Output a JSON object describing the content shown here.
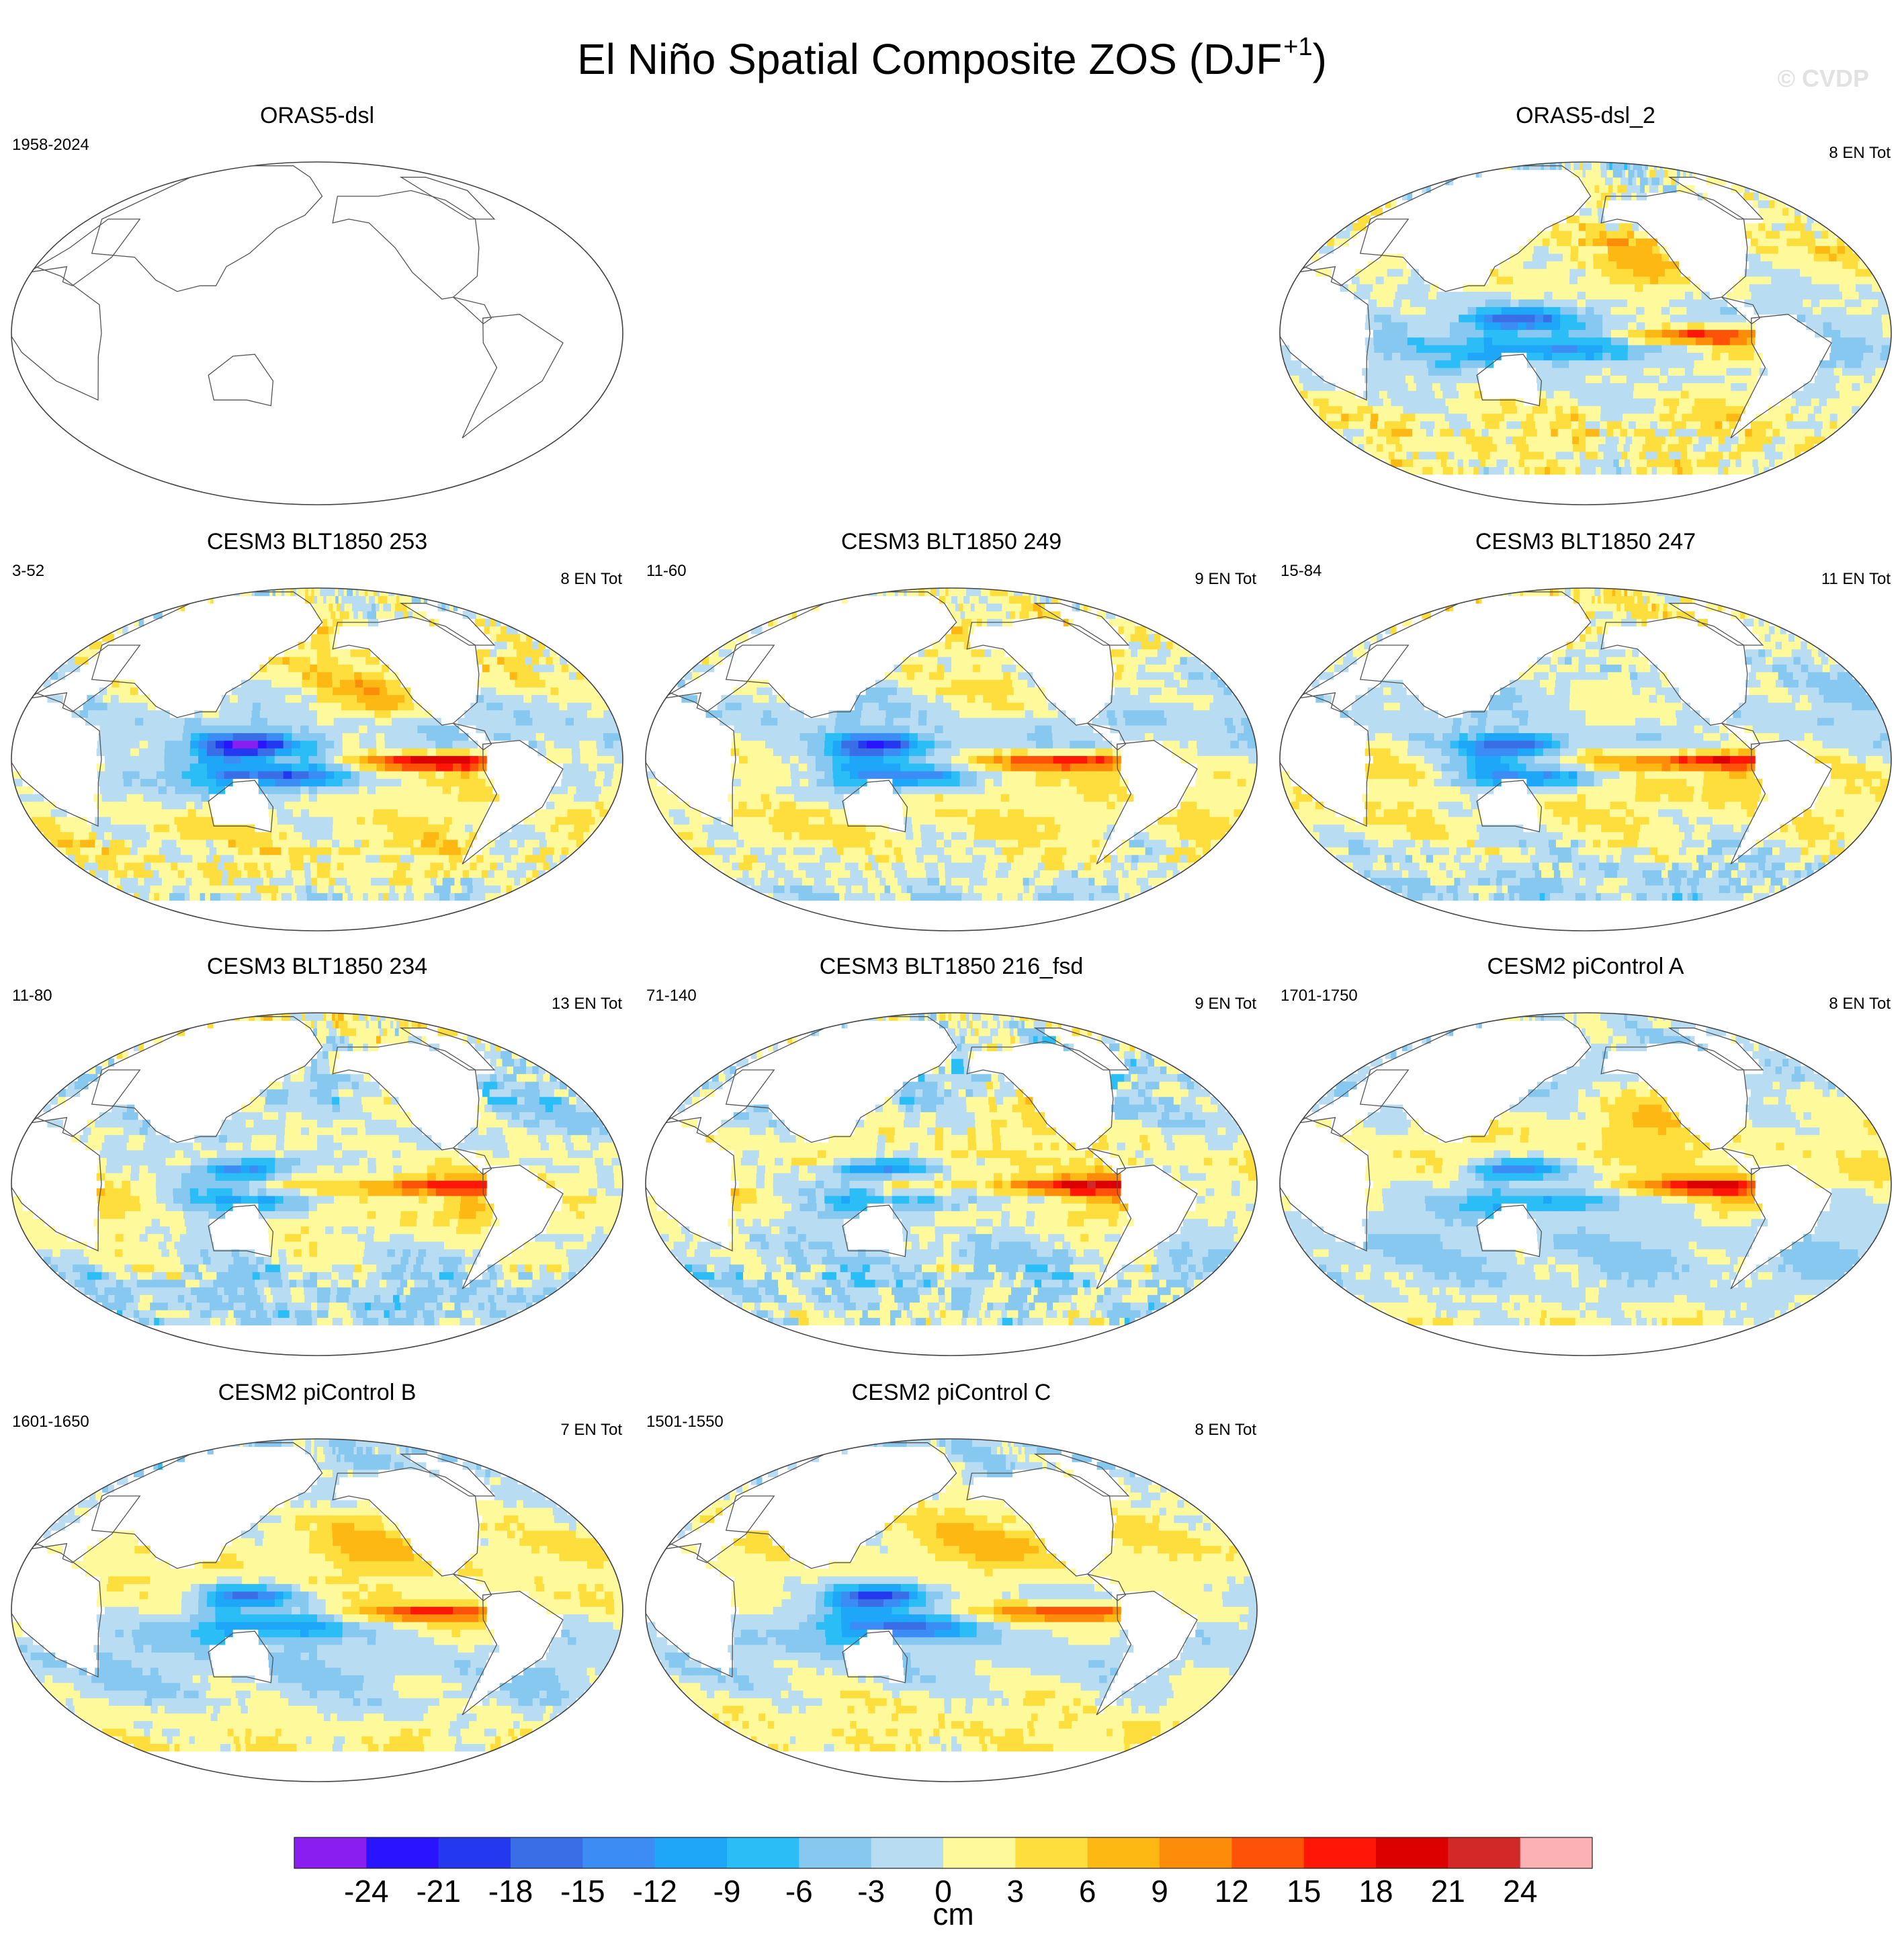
{
  "figure": {
    "title_main": "El Niño Spatial Composite ZOS (DJF",
    "title_sup": "+1",
    "title_close": ")",
    "watermark": "© CVDP"
  },
  "panels": [
    {
      "id": "orasdsl",
      "title": "ORAS5-dsl",
      "period": "1958-2024",
      "count": "",
      "has_data": false,
      "amplitude": 0,
      "noise": 0
    },
    {
      "id": "oras2",
      "title": "ORAS5-dsl_2",
      "period": "",
      "count": "8 EN Tot",
      "has_data": true,
      "amplitude": 0.72,
      "noise": 0.35
    },
    {
      "id": "b253",
      "title": "CESM3 BLT1850 253",
      "period": "3-52",
      "count": "8 EN Tot",
      "has_data": true,
      "amplitude": 1.0,
      "noise": 0.35
    },
    {
      "id": "b249",
      "title": "CESM3 BLT1850 249",
      "period": "11-60",
      "count": "9 EN Tot",
      "has_data": true,
      "amplitude": 0.85,
      "noise": 0.3
    },
    {
      "id": "b247",
      "title": "CESM3 BLT1850 247",
      "period": "15-84",
      "count": "11 EN Tot",
      "has_data": true,
      "amplitude": 0.85,
      "noise": 0.3
    },
    {
      "id": "b234",
      "title": "CESM3 BLT1850 234",
      "period": "11-80",
      "count": "13 EN Tot",
      "has_data": true,
      "amplitude": 0.72,
      "noise": 0.35
    },
    {
      "id": "b216",
      "title": "CESM3 BLT1850 216_fsd",
      "period": "71-140",
      "count": "9 EN Tot",
      "has_data": true,
      "amplitude": 0.72,
      "noise": 0.4
    },
    {
      "id": "pica",
      "title": "CESM2 piControl A",
      "period": "1701-1750",
      "count": "8 EN Tot",
      "has_data": true,
      "amplitude": 0.75,
      "noise": 0.15
    },
    {
      "id": "picb",
      "title": "CESM2 piControl B",
      "period": "1601-1650",
      "count": "7 EN Tot",
      "has_data": true,
      "amplitude": 0.7,
      "noise": 0.15
    },
    {
      "id": "picc",
      "title": "CESM2 piControl C",
      "period": "1501-1550",
      "count": "8 EN Tot",
      "has_data": true,
      "amplitude": 0.8,
      "noise": 0.15
    }
  ],
  "chart_data": {
    "type": "filled-contour map panels",
    "title": "El Niño Spatial Composite ZOS (DJF+1)",
    "projection": "Robinson, centered on the Pacific",
    "variable": "ZOS (sea surface height) composite anomaly",
    "colorbar": {
      "unit": "cm",
      "levels": [
        -24,
        -21,
        -18,
        -15,
        -12,
        -9,
        -6,
        -3,
        0,
        3,
        6,
        9,
        12,
        15,
        18,
        21,
        24
      ],
      "tick_labels": [
        "-24",
        "-21",
        "-18",
        "-15",
        "-12",
        "-9",
        "-6",
        "-3",
        "0",
        "3",
        "6",
        "9",
        "12",
        "15",
        "18",
        "21",
        "24"
      ],
      "colors": [
        "#8a1ef0",
        "#2a14ff",
        "#2438f0",
        "#3a6ee6",
        "#3c8cf5",
        "#1ea6f8",
        "#2bbef6",
        "#86c8ef",
        "#b8ddf2",
        "#fef99a",
        "#fdde3c",
        "#fdb814",
        "#fd8c0a",
        "#fe5208",
        "#ff1606",
        "#dd0000",
        "#d22828",
        "#fcb2b4"
      ]
    },
    "panels": [
      {
        "title": "ORAS5-dsl",
        "period": "1958-2024",
        "el_nino_events": null,
        "data": "none (blank map)"
      },
      {
        "title": "ORAS5-dsl_2",
        "el_nino_events": 8,
        "east_pacific_max_cm": 12,
        "west_pacific_min_cm": -18
      },
      {
        "title": "CESM3 BLT1850 253",
        "period": "3-52",
        "el_nino_events": 8,
        "east_pacific_max_cm": 21,
        "west_pacific_min_cm": -21
      },
      {
        "title": "CESM3 BLT1850 249",
        "period": "11-60",
        "el_nino_events": 9,
        "east_pacific_max_cm": 18,
        "west_pacific_min_cm": -21
      },
      {
        "title": "CESM3 BLT1850 247",
        "period": "15-84",
        "el_nino_events": 11,
        "east_pacific_max_cm": 18,
        "west_pacific_min_cm": -21
      },
      {
        "title": "CESM3 BLT1850 234",
        "period": "11-80",
        "el_nino_events": 13,
        "east_pacific_max_cm": 15,
        "west_pacific_min_cm": -18
      },
      {
        "title": "CESM3 BLT1850 216_fsd",
        "period": "71-140",
        "el_nino_events": 9,
        "east_pacific_max_cm": 15,
        "west_pacific_min_cm": -18
      },
      {
        "title": "CESM2 piControl A",
        "period": "1701-1750",
        "el_nino_events": 8,
        "east_pacific_max_cm": 15,
        "west_pacific_min_cm": -15
      },
      {
        "title": "CESM2 piControl B",
        "period": "1601-1650",
        "el_nino_events": 7,
        "east_pacific_max_cm": 12,
        "west_pacific_min_cm": -15
      },
      {
        "title": "CESM2 piControl C",
        "period": "1501-1550",
        "el_nino_events": 8,
        "east_pacific_max_cm": 15,
        "west_pacific_min_cm": -18
      }
    ]
  }
}
